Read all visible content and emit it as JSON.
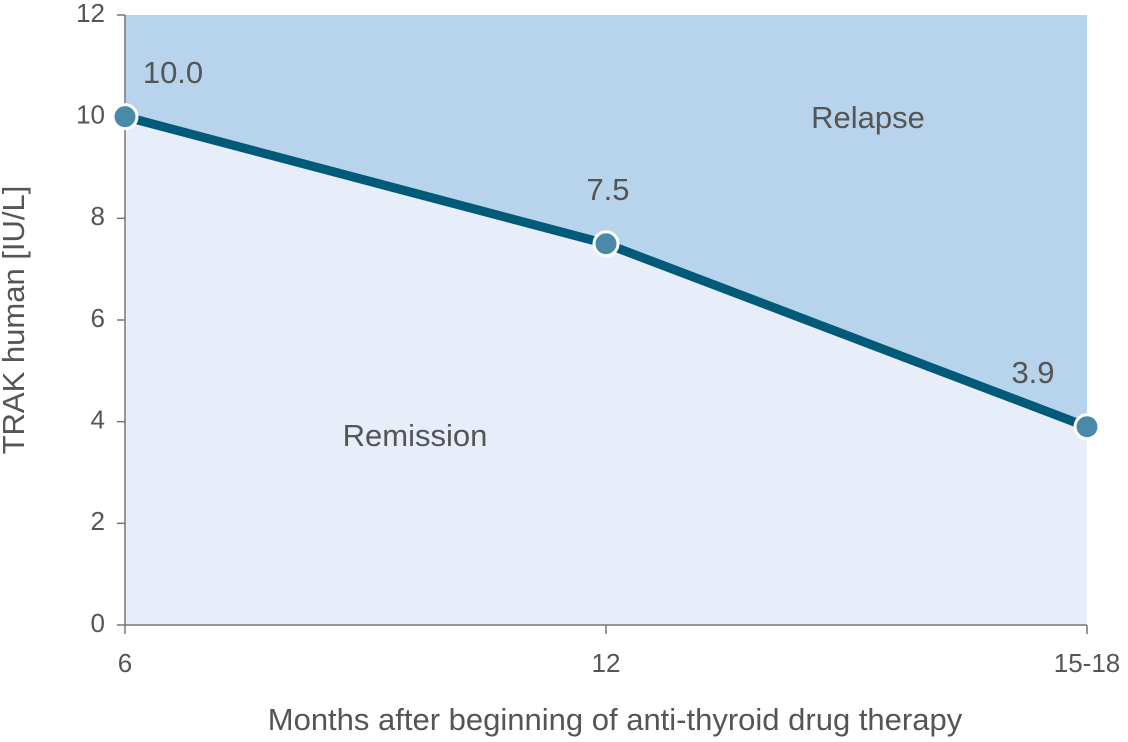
{
  "chart_data": {
    "type": "line",
    "categories": [
      "6",
      "12",
      "15-18"
    ],
    "values": [
      10.0,
      7.5,
      3.9
    ],
    "value_labels": [
      "10.0",
      "7.5",
      "3.9"
    ],
    "color": "#005a78",
    "marker_color": "#4a8aa8",
    "fill_above_color": "#b8d3ec",
    "fill_below_color": "#e7eef9",
    "ylim": [
      0,
      12
    ],
    "yticks": [
      0,
      2,
      4,
      6,
      8,
      10,
      12
    ],
    "xlabel": "Months after beginning of anti-thyroid drug therapy",
    "ylabel": "TRAK human [IU/L]",
    "annotations": [
      "Relapse",
      "Remission"
    ]
  }
}
